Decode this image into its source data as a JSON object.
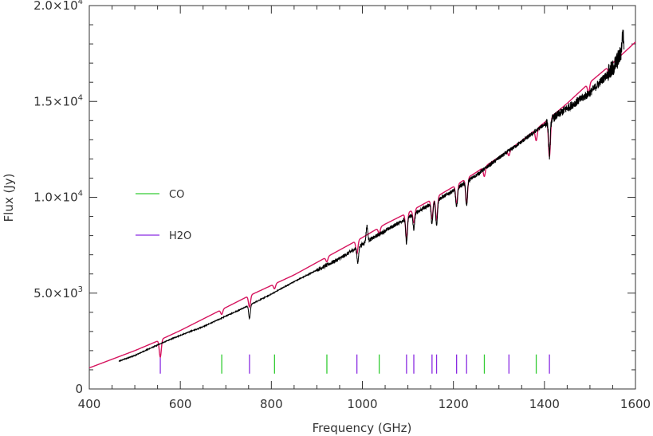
{
  "chart_data": {
    "type": "line",
    "title": "",
    "xlabel": "Frequency (GHz)",
    "ylabel": "Flux (Jy)",
    "xlim": [
      400,
      1600
    ],
    "ylim": [
      0,
      20000
    ],
    "x_ticks": [
      400,
      600,
      800,
      1000,
      1200,
      1400,
      1600
    ],
    "x_tick_labels": [
      "400",
      "600",
      "800",
      "1000",
      "1200",
      "1400",
      "1600"
    ],
    "y_ticks": [
      0,
      5000,
      10000,
      15000,
      20000
    ],
    "y_tick_labels": [
      {
        "mant": "0",
        "exp": ""
      },
      {
        "mant": "5.0×10",
        "exp": "3"
      },
      {
        "mant": "1.0×10",
        "exp": "4"
      },
      {
        "mant": "1.5×10",
        "exp": "4"
      },
      {
        "mant": "2.0×10",
        "exp": "4"
      }
    ],
    "grid": false,
    "legend_position": "left",
    "series": [
      {
        "color": "#000000",
        "x": [
          465,
          500,
          555,
          600,
          650,
          700,
          750,
          800,
          850,
          900,
          950,
          1000,
          1050,
          1100,
          1150,
          1200,
          1250,
          1300,
          1350,
          1400,
          1450,
          1500,
          1550,
          1575
        ],
        "y": [
          1450,
          1750,
          2350,
          2800,
          3250,
          3800,
          4350,
          4950,
          5600,
          6200,
          6800,
          7550,
          8250,
          8950,
          9650,
          10350,
          11150,
          12050,
          12900,
          13800,
          14650,
          15450,
          16700,
          17800
        ],
        "features": [
          {
            "x": 752,
            "dy": -700
          },
          {
            "x": 990,
            "dy": -800
          },
          {
            "x": 1010,
            "dy": 800
          },
          {
            "x": 1097,
            "dy": -1300
          },
          {
            "x": 1113,
            "dy": -800
          },
          {
            "x": 1153,
            "dy": -1100
          },
          {
            "x": 1163,
            "dy": -1300
          },
          {
            "x": 1207,
            "dy": -1000
          },
          {
            "x": 1229,
            "dy": -1300
          },
          {
            "x": 1411,
            "dy": -1800
          },
          {
            "x": 1572,
            "dy": 800
          }
        ]
      },
      {
        "color": "#d6145e",
        "x": [
          400,
          450,
          500,
          550,
          600,
          650,
          700,
          750,
          800,
          850,
          900,
          950,
          1000,
          1050,
          1100,
          1150,
          1200,
          1250,
          1300,
          1350,
          1400,
          1450,
          1500,
          1550,
          1600
        ],
        "y": [
          1100,
          1550,
          2000,
          2500,
          3050,
          3650,
          4250,
          4850,
          5400,
          5950,
          6600,
          7250,
          7900,
          8600,
          9200,
          9850,
          10550,
          11300,
          12100,
          12950,
          13900,
          14900,
          16000,
          17000,
          18100
        ],
        "dips": [
          {
            "x": 556,
            "depth": 900
          },
          {
            "x": 691,
            "depth": 250
          },
          {
            "x": 752,
            "depth": 600
          },
          {
            "x": 807,
            "depth": 250
          },
          {
            "x": 922,
            "depth": 250
          },
          {
            "x": 988,
            "depth": 700
          },
          {
            "x": 1037,
            "depth": 300
          },
          {
            "x": 1097,
            "depth": 1300
          },
          {
            "x": 1113,
            "depth": 700
          },
          {
            "x": 1153,
            "depth": 1000
          },
          {
            "x": 1163,
            "depth": 1200
          },
          {
            "x": 1207,
            "depth": 1000
          },
          {
            "x": 1229,
            "depth": 1300
          },
          {
            "x": 1268,
            "depth": 500
          },
          {
            "x": 1322,
            "depth": 300
          },
          {
            "x": 1382,
            "depth": 600
          },
          {
            "x": 1411,
            "depth": 2000
          },
          {
            "x": 1497,
            "depth": 500
          },
          {
            "x": 1542,
            "depth": 400
          }
        ]
      }
    ],
    "line_markers": [
      {
        "name": "CO",
        "color": "#33cc33",
        "positions": [
          691,
          807,
          922,
          1037,
          1268,
          1382
        ],
        "y_range": [
          800,
          1800
        ]
      },
      {
        "name": "H2O",
        "color": "#8a2be2",
        "positions": [
          556,
          752,
          988,
          1097,
          1113,
          1153,
          1163,
          1207,
          1229,
          1322,
          1411
        ],
        "y_range": [
          800,
          1800
        ]
      }
    ],
    "legend": [
      {
        "label": "CO",
        "color": "#33cc33"
      },
      {
        "label": "H2O",
        "color": "#8a2be2"
      }
    ]
  }
}
